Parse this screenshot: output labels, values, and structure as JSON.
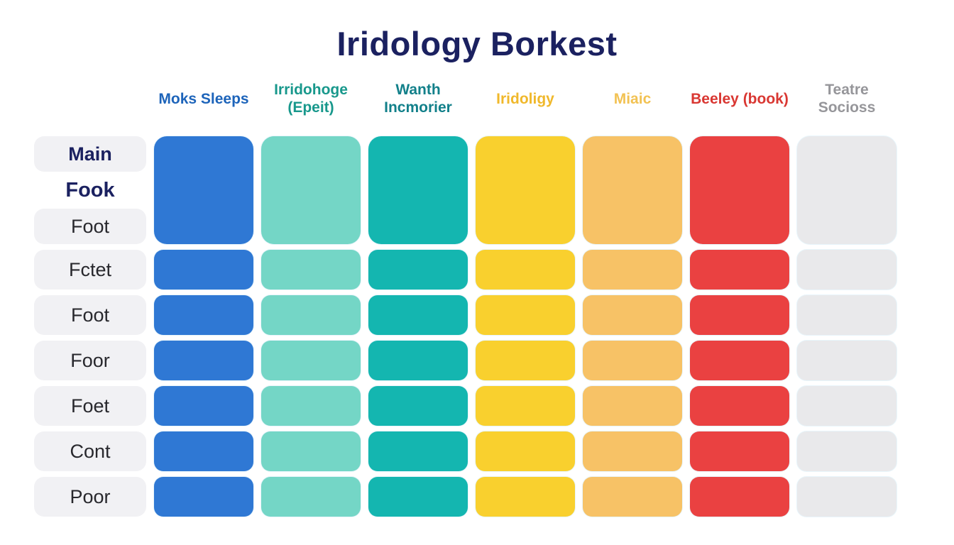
{
  "title": "Iridology Borkest",
  "colors": {
    "title_text": "#1b2160",
    "label_text": "#28282d",
    "label_pill_bg": "#f1f1f4",
    "emphasis_text": "#1b2160"
  },
  "column_headers": [
    {
      "label": "Moks Sleeps",
      "color": "#1d64ba"
    },
    {
      "label": "Irridohoge (Epeit)",
      "color": "#18988c"
    },
    {
      "label": "Wanth Incmorier",
      "color": "#12808a"
    },
    {
      "label": "Iridoligy",
      "color": "#f0b82b"
    },
    {
      "label": "Miaic",
      "color": "#f2c253"
    },
    {
      "label": "Beeley (book)",
      "color": "#d93732"
    },
    {
      "label": "Teatre Socioss",
      "color": "#96969a"
    }
  ],
  "row_labels": {
    "first_row_emphasized_lines": [
      "Main",
      "Fook"
    ],
    "first_row_pill": "Foot",
    "pills": [
      "Fctet",
      "Foot",
      "Foor",
      "Foet",
      "Cont",
      "Poor"
    ]
  },
  "grid": {
    "cell_colors": [
      "#2f78d4",
      "#74d6c6",
      "#14b6b0",
      "#f9d02e",
      "#f7c266",
      "#ea4141",
      "#e9e9eb"
    ],
    "body_row_count": 6,
    "tall_first_row": true
  },
  "chart_data": {
    "type": "table",
    "title": "Iridology Borkest",
    "columns": [
      "Moks Sleeps",
      "Irridohoge (Epeit)",
      "Wanth Incmorier",
      "Iridoligy",
      "Miaic",
      "Beeley (book)",
      "Teatre Socioss"
    ],
    "rows": [
      "Main Fook",
      "Foot",
      "Fctet",
      "Foot",
      "Foor",
      "Foet",
      "Cont",
      "Poor"
    ],
    "column_swatch_colors": [
      "#2f78d4",
      "#74d6c6",
      "#14b6b0",
      "#f9d02e",
      "#f7c266",
      "#ea4141",
      "#e9e9eb"
    ],
    "cell_fill": "every grid cell is a solid rounded swatch in its column color; no numeric values are displayed",
    "legend_position": "none",
    "grid_lines": false
  }
}
